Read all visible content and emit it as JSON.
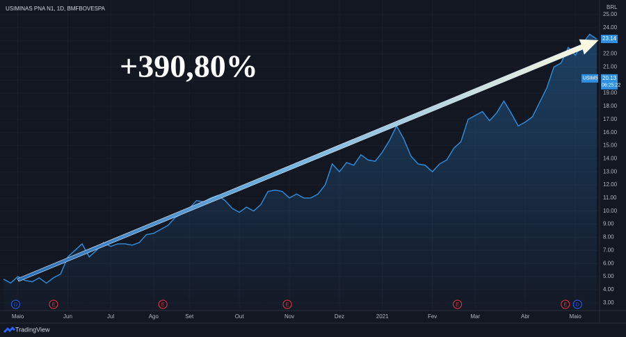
{
  "chart_data": {
    "type": "area",
    "title": "USIMINAS PNA N1, 1D, BMFBOVESPA",
    "currency": "BRL",
    "annotation": "+390,80%",
    "brand": "TradingView",
    "series": [
      {
        "name": "USIM5",
        "color": "#2f8fe0",
        "values": [
          4.8,
          4.5,
          5.0,
          4.7,
          4.6,
          4.9,
          4.5,
          4.9,
          5.2,
          6.5,
          7.0,
          7.5,
          6.5,
          7.0,
          7.6,
          7.3,
          7.5,
          7.5,
          7.4,
          7.6,
          8.2,
          8.3,
          8.6,
          8.9,
          9.5,
          9.8,
          10.2,
          10.8,
          10.7,
          11.0,
          11.2,
          10.8,
          10.2,
          9.9,
          10.3,
          10.0,
          10.5,
          11.5,
          11.6,
          11.5,
          11.0,
          11.3,
          11.0,
          11.0,
          11.3,
          12.0,
          13.6,
          13.0,
          13.7,
          13.5,
          14.3,
          13.9,
          13.8,
          14.5,
          15.4,
          16.5,
          15.5,
          14.2,
          13.6,
          13.5,
          13.0,
          13.6,
          13.9,
          14.8,
          15.3,
          17.0,
          17.3,
          17.6,
          16.9,
          17.5,
          18.4,
          17.5,
          16.5,
          16.8,
          17.2,
          18.3,
          19.4,
          21.0,
          21.3,
          22.5,
          21.9,
          22.8,
          23.5,
          23.14
        ]
      }
    ],
    "last_label": "23.14",
    "marker": {
      "name": "USIM5",
      "value": 20.13,
      "label": "20.13",
      "time": "06:25:22"
    },
    "xlim": [
      0,
      83
    ],
    "xticks": [
      {
        "value": 2,
        "label": "Maio"
      },
      {
        "value": 9,
        "label": "Jun"
      },
      {
        "value": 15,
        "label": "Jul"
      },
      {
        "value": 21,
        "label": "Ago"
      },
      {
        "value": 26,
        "label": "Set"
      },
      {
        "value": 33,
        "label": "Out"
      },
      {
        "value": 40,
        "label": "Nov"
      },
      {
        "value": 47,
        "label": "Dez"
      },
      {
        "value": 53,
        "label": "2021"
      },
      {
        "value": 60,
        "label": "Fev"
      },
      {
        "value": 66,
        "label": "Mar"
      },
      {
        "value": 73,
        "label": "Abr"
      },
      {
        "value": 80,
        "label": "Maio"
      }
    ],
    "ylim": [
      2.4,
      25.7
    ],
    "yticks": [
      {
        "value": 3,
        "label": "3.00"
      },
      {
        "value": 4,
        "label": "4.00"
      },
      {
        "value": 5,
        "label": "5.00"
      },
      {
        "value": 6,
        "label": "6.00"
      },
      {
        "value": 7,
        "label": "7.00"
      },
      {
        "value": 8,
        "label": "8.00"
      },
      {
        "value": 9,
        "label": "9.00"
      },
      {
        "value": 10,
        "label": "10.00"
      },
      {
        "value": 11,
        "label": "11.00"
      },
      {
        "value": 12,
        "label": "12.00"
      },
      {
        "value": 13,
        "label": "13.00"
      },
      {
        "value": 14,
        "label": "14.00"
      },
      {
        "value": 15,
        "label": "15.00"
      },
      {
        "value": 16,
        "label": "16.00"
      },
      {
        "value": 17,
        "label": "17.00"
      },
      {
        "value": 18,
        "label": "18.00"
      },
      {
        "value": 19,
        "label": "19.00"
      },
      {
        "value": 20,
        "label": "20.00"
      },
      {
        "value": 21,
        "label": "21.00"
      },
      {
        "value": 22,
        "label": "22.00"
      },
      {
        "value": 23,
        "label": "23.00"
      },
      {
        "value": 24,
        "label": "24.00"
      },
      {
        "value": 25,
        "label": "25.00"
      }
    ],
    "events": [
      {
        "x": 1.7,
        "label": "D",
        "color": "#2962ff"
      },
      {
        "x": 7,
        "label": "E",
        "color": "#f23645"
      },
      {
        "x": 22.3,
        "label": "E",
        "color": "#f23645"
      },
      {
        "x": 39.7,
        "label": "E",
        "color": "#f23645"
      },
      {
        "x": 63.5,
        "label": "E",
        "color": "#f23645"
      },
      {
        "x": 78.6,
        "label": "E",
        "color": "#f23645"
      },
      {
        "x": 80.3,
        "label": "D",
        "color": "#2962ff"
      }
    ]
  }
}
